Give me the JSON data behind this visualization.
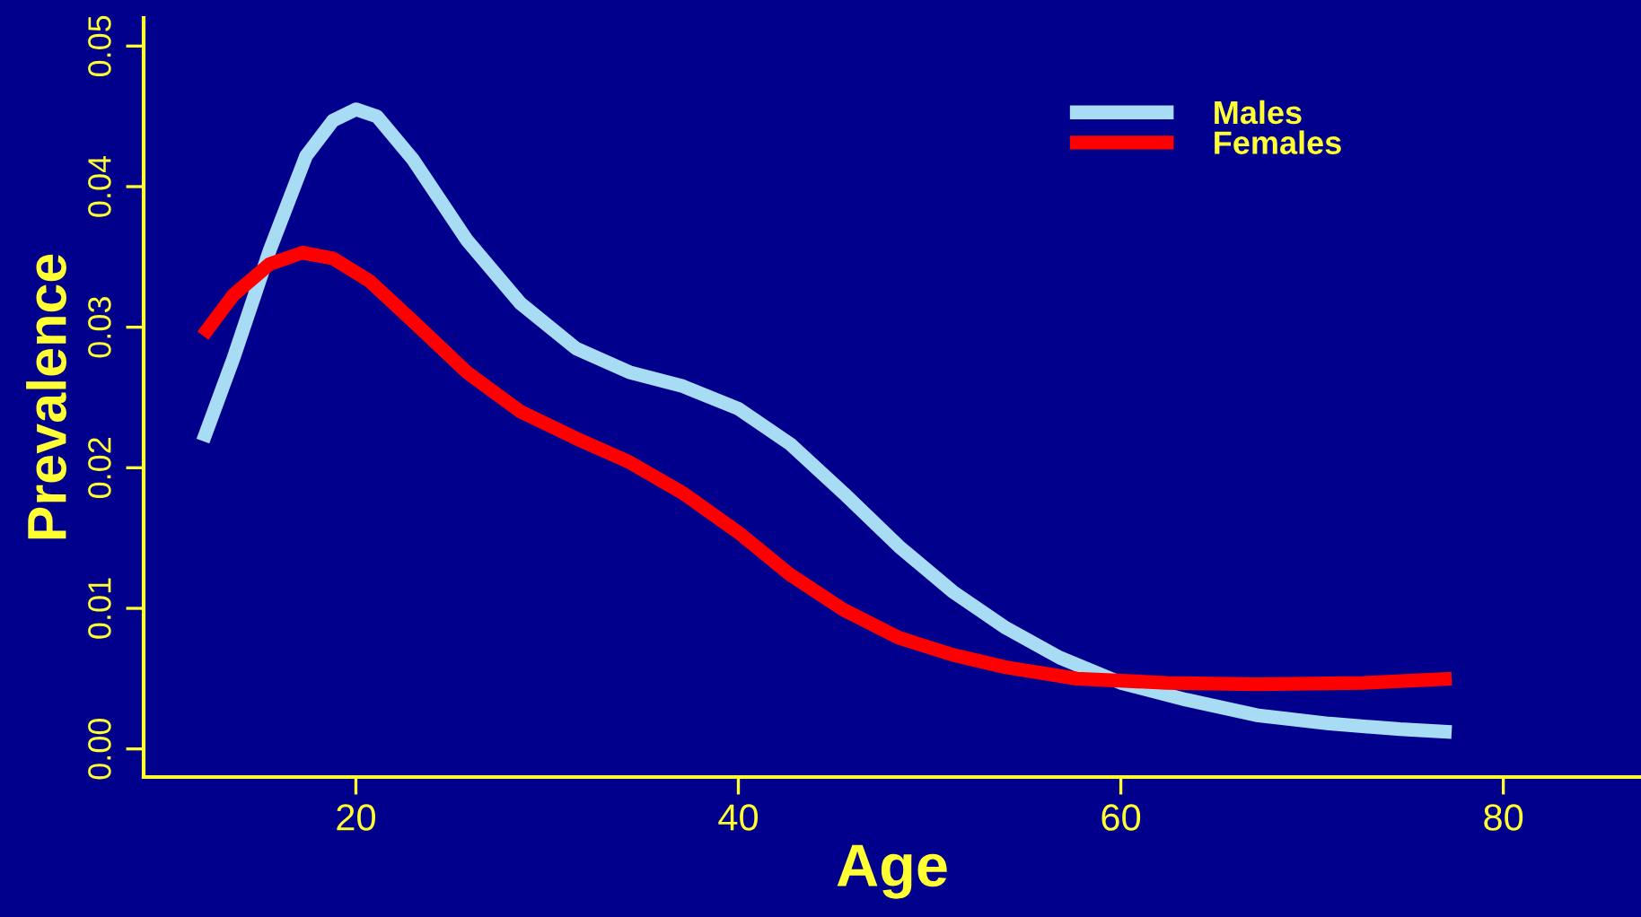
{
  "chart_data": {
    "type": "line",
    "xlabel": "Age",
    "ylabel": "Prevalence",
    "xlim": [
      8.9,
      87.2
    ],
    "ylim": [
      -0.002,
      0.052
    ],
    "xticks": [
      20,
      40,
      60,
      80
    ],
    "yticks": [
      {
        "value": 0,
        "label": "0.00"
      },
      {
        "value": 0.01,
        "label": "0.01"
      },
      {
        "value": 0.02,
        "label": "0.02"
      },
      {
        "value": 0.03,
        "label": "0.03"
      },
      {
        "value": 0.04,
        "label": "0.04"
      },
      {
        "value": 0.05,
        "label": "0.05"
      }
    ],
    "grid": false,
    "legend": "top right",
    "marker": "none",
    "line_style": "solid",
    "series": [
      {
        "name": "Males",
        "color": "#a8dcf5",
        "x": [
          12,
          13.6,
          15.5,
          17.4,
          18.8,
          20,
          21.1,
          23,
          25.8,
          28.6,
          31.5,
          34.3,
          37.1,
          40,
          42.7,
          45.5,
          48.4,
          51.2,
          54,
          56.8,
          60,
          63.4,
          67.1,
          70.9,
          74.6,
          77.3
        ],
        "values": [
          0.0219,
          0.0278,
          0.0355,
          0.0422,
          0.0447,
          0.0455,
          0.045,
          0.0419,
          0.0362,
          0.0317,
          0.0285,
          0.0268,
          0.0258,
          0.0242,
          0.0217,
          0.0182,
          0.0144,
          0.0112,
          0.0086,
          0.0065,
          0.0047,
          0.0035,
          0.0024,
          0.0018,
          0.0014,
          0.0012
        ]
      },
      {
        "name": "Females",
        "color": "#ff0000",
        "x": [
          12,
          13.6,
          15.5,
          17.2,
          18.8,
          20.7,
          23,
          25.8,
          28.6,
          31.5,
          34.3,
          37.1,
          40,
          42.7,
          45.5,
          48.4,
          51.2,
          54,
          57.7,
          62.4,
          67.1,
          72.7,
          77.3
        ],
        "values": [
          0.0294,
          0.0323,
          0.0345,
          0.0353,
          0.0349,
          0.0333,
          0.0304,
          0.0268,
          0.024,
          0.0221,
          0.0204,
          0.0182,
          0.0154,
          0.0124,
          0.0099,
          0.0079,
          0.0067,
          0.0058,
          0.005,
          0.0047,
          0.0046,
          0.0047,
          0.005
        ]
      }
    ]
  }
}
